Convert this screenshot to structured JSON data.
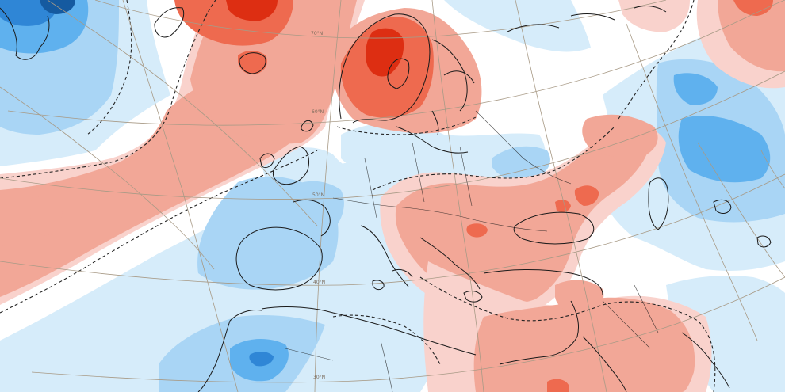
{
  "map": {
    "colors": {
      "background": "#ffffff",
      "cold_light": "#d6ecfa",
      "cold_mid": "#a9d5f5",
      "cold_strong": "#5fb1ee",
      "cold_deep": "#2f86d6",
      "cold_extreme": "#155aa0",
      "warm_light": "#f9d2cc",
      "warm_mid": "#f2a797",
      "warm_strong": "#ee6a4f",
      "warm_deep": "#dd2e12",
      "warm_extreme": "#a81e08",
      "coast": "#1a1a1a",
      "graticule": "#a89a86",
      "contour": "#222222"
    },
    "graticule_labels": {
      "lat70": "70°N",
      "lat60": "60°N",
      "lat50": "50°N",
      "lat40": "40°N",
      "lat30": "30°N"
    }
  }
}
